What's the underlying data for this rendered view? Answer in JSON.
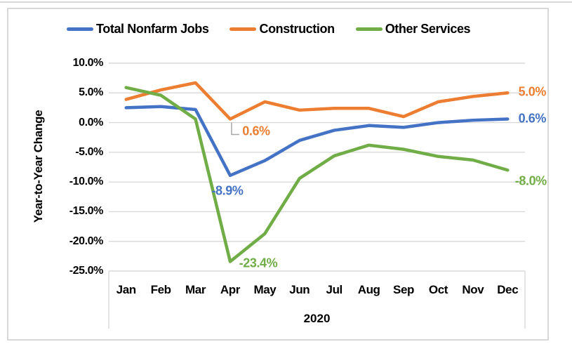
{
  "chart_data": {
    "type": "line",
    "title": "",
    "x_axis_label": "2020",
    "y_axis_label": "Year-to-Year Change",
    "categories": [
      "Jan",
      "Feb",
      "Mar",
      "Apr",
      "May",
      "Jun",
      "Jul",
      "Aug",
      "Sep",
      "Oct",
      "Nov",
      "Dec"
    ],
    "y_ticks": [
      {
        "label": "10.0%",
        "value": 10
      },
      {
        "label": "5.0%",
        "value": 5
      },
      {
        "label": "0.0%",
        "value": 0
      },
      {
        "label": "-5.0%",
        "value": -5
      },
      {
        "label": "-10.0%",
        "value": -10
      },
      {
        "label": "-15.0%",
        "value": -15
      },
      {
        "label": "-20.0%",
        "value": -20
      },
      {
        "label": "-25.0%",
        "value": -25
      }
    ],
    "ylim": [
      -25,
      10
    ],
    "grid": true,
    "legend_position": "top",
    "series": [
      {
        "name": "Total Nonfarm Jobs",
        "color": "#4472C4",
        "values": [
          2.5,
          2.7,
          2.2,
          -8.9,
          -6.4,
          -3.0,
          -1.3,
          -0.5,
          -0.8,
          0.0,
          0.4,
          0.6
        ]
      },
      {
        "name": "Construction",
        "color": "#ED7D31",
        "values": [
          3.9,
          5.5,
          6.7,
          0.6,
          3.5,
          2.1,
          2.4,
          2.4,
          1.0,
          3.5,
          4.4,
          5.0
        ]
      },
      {
        "name": "Other Services",
        "color": "#70AD47",
        "values": [
          5.9,
          4.6,
          0.6,
          -23.4,
          -18.7,
          -9.4,
          -5.6,
          -3.8,
          -4.5,
          -5.7,
          -6.3,
          -8.0
        ]
      }
    ],
    "annotations": [
      {
        "series": 1,
        "month": "Apr",
        "month_index": 3,
        "label": "0.6%",
        "leader": true
      },
      {
        "series": 0,
        "month": "Apr",
        "month_index": 3,
        "label": "-8.9%",
        "leader": false
      },
      {
        "series": 2,
        "month": "Apr",
        "month_index": 3,
        "label": "-23.4%",
        "leader": false
      },
      {
        "series": 1,
        "month": "Dec",
        "month_index": 11,
        "label": "5.0%",
        "leader": false
      },
      {
        "series": 0,
        "month": "Dec",
        "month_index": 11,
        "label": "0.6%",
        "leader": false
      },
      {
        "series": 2,
        "month": "Dec",
        "month_index": 11,
        "label": "-8.0%",
        "leader": false
      }
    ],
    "colors": {
      "gridline": "#D9D9D9",
      "frame_border": "#D9D9D9",
      "leader_line": "#A6A6A6",
      "axis_text": "#000000"
    }
  }
}
